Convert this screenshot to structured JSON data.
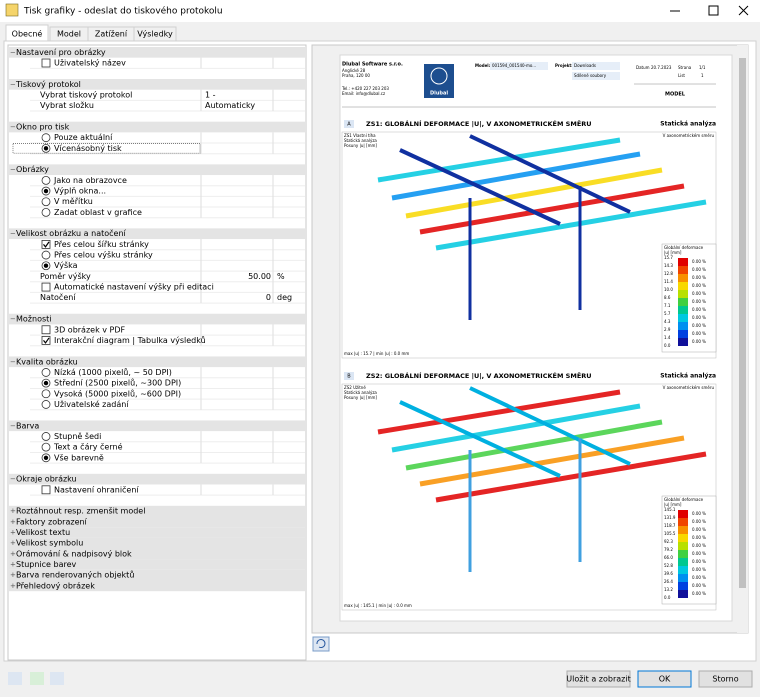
{
  "window": {
    "title": "Tisk grafiky - odeslat do tiskového protokolu"
  },
  "tabs": [
    "Obecné",
    "Model",
    "Zatížení",
    "Výsledky"
  ],
  "selected_tab": 0,
  "sections": [
    {
      "title": "Nastavení pro obrázky",
      "items": [
        {
          "label": "Uživatelský název",
          "control": "checkbox",
          "checked": false
        }
      ]
    },
    {
      "title": "Tiskový protokol",
      "items": [
        {
          "label": "Vybrat tiskový protokol",
          "value": "1 -"
        },
        {
          "label": "Vybrat složku",
          "value": "Automaticky"
        }
      ]
    },
    {
      "title": "Okno pro tisk",
      "items": [
        {
          "label": "Pouze aktuální",
          "control": "radio",
          "checked": false
        },
        {
          "label": "Vícenásobný tisk",
          "control": "radio",
          "checked": true,
          "focused": true
        }
      ]
    },
    {
      "title": "Obrázky",
      "items": [
        {
          "label": "Jako na obrazovce",
          "control": "radio",
          "checked": false
        },
        {
          "label": "Výplň okna...",
          "control": "radio",
          "checked": true
        },
        {
          "label": "V měřítku",
          "control": "radio",
          "checked": false
        },
        {
          "label": "Zadat oblast v grafice",
          "control": "radio",
          "checked": false
        }
      ]
    },
    {
      "title": "Velikost obrázku a natočení",
      "items": [
        {
          "label": "Přes celou šířku stránky",
          "control": "checkbox",
          "checked": true
        },
        {
          "label": "Přes celou výšku stránky",
          "control": "radio",
          "checked": false
        },
        {
          "label": "Výška",
          "control": "radio",
          "checked": true
        },
        {
          "label": "Poměr výšky",
          "value": "50.00",
          "unit": "%"
        },
        {
          "label": "Automatické nastavení výšky při editaci",
          "control": "checkbox",
          "checked": false
        },
        {
          "label": "Natočení",
          "value": "0",
          "unit": "deg"
        }
      ]
    },
    {
      "title": "Možnosti",
      "items": [
        {
          "label": "3D obrázek v PDF",
          "control": "checkbox",
          "checked": false
        },
        {
          "label": "Interakční diagram | Tabulka výsledků",
          "control": "checkbox",
          "checked": true
        }
      ]
    },
    {
      "title": "Kvalita obrázku",
      "items": [
        {
          "label": "Nízká (1000 pixelů, ~ 50 DPI)",
          "control": "radio",
          "checked": false
        },
        {
          "label": "Střední (2500 pixelů, ~300 DPI)",
          "control": "radio",
          "checked": true
        },
        {
          "label": "Vysoká (5000 pixelů, ~600 DPI)",
          "control": "radio",
          "checked": false
        },
        {
          "label": "Uživatelské zadání",
          "control": "radio",
          "checked": false
        }
      ]
    },
    {
      "title": "Barva",
      "items": [
        {
          "label": "Stupně šedi",
          "control": "radio",
          "checked": false
        },
        {
          "label": "Text a čáry černé",
          "control": "radio",
          "checked": false
        },
        {
          "label": "Vše barevně",
          "control": "radio",
          "checked": true
        }
      ]
    },
    {
      "title": "Okraje obrázku",
      "items": [
        {
          "label": "Nastavení ohraničení",
          "control": "checkbox",
          "checked": false
        }
      ]
    }
  ],
  "collapsed_sections": [
    "Roztáhnout resp. zmenšit model",
    "Faktory zobrazení",
    "Velikost textu",
    "Velikost symbolu",
    "Orámování & nadpisový blok",
    "Stupnice barev",
    "Barva renderovaných objektů",
    "Přehledový obrázek"
  ],
  "preview": {
    "header": {
      "company": "Dlubal Software s.r.o.",
      "address": [
        "Anglické 28",
        "Praha, 120 00"
      ],
      "contact": [
        "Tel.: +420 227 203 203",
        "Email: info@dlubal.cz"
      ],
      "logo": "Dlubal",
      "model_label": "Model:",
      "model": "001594_001540-mo...",
      "project_label": "Projekt:",
      "project": "Downloads",
      "project_sub": "Sdílené soubory",
      "date_label": "Datum",
      "date": "20.7.2023",
      "page_label": "Strana",
      "page": "1/1",
      "sheet_label": "List",
      "sheet": "1",
      "section": "MODEL"
    },
    "legend_colors": [
      "#e00000",
      "#f04400",
      "#f89000",
      "#f8d800",
      "#b8e000",
      "#40d040",
      "#00c890",
      "#00c8e0",
      "#0090f0",
      "#0040e0",
      "#10109a"
    ],
    "figures": [
      {
        "marker": "A",
        "title": "ZS1: GLOBÁLNÍ DEFORMACE |U|, V AXONOMETRICKÉM SMĚRU",
        "analysis": "Statická analýza",
        "info": [
          "ZS1 Vlastní tíha",
          "Statická analýza",
          "Posuny |u| [mm]"
        ],
        "view": "V axonometrickém směru",
        "legend_title": [
          "Globální deformace",
          "|u| [mm]"
        ],
        "legend_values": [
          "15.7",
          "14.3",
          "12.8",
          "11.4",
          "10.0",
          "8.6",
          "7.1",
          "5.7",
          "4.3",
          "2.9",
          "1.4",
          "0.0"
        ],
        "legend_percent": [
          "0.00 %",
          "0.00 %",
          "0.00 %",
          "0.00 %",
          "0.00 %",
          "0.00 %",
          "0.00 %",
          "0.00 %",
          "0.00 %",
          "0.00 %",
          "0.00 %"
        ],
        "footer": "max |u| : 15.7 | min |u| : 0.0 mm"
      },
      {
        "marker": "B",
        "title": "ZS2: GLOBÁLNÍ DEFORMACE |U|, V AXONOMETRICKÉM SMĚRU",
        "analysis": "Statická analýza",
        "info": [
          "ZS2 Užitné",
          "Statická analýza",
          "Posuny |u| [mm]"
        ],
        "view": "V axonometrickém směru",
        "legend_title": [
          "Globální deformace",
          "|u| [mm]"
        ],
        "legend_values": [
          "145.1",
          "131.9",
          "118.7",
          "105.5",
          "92.3",
          "79.2",
          "66.0",
          "52.8",
          "39.6",
          "26.4",
          "13.2",
          "0.0"
        ],
        "legend_percent": [
          "0.00 %",
          "0.00 %",
          "0.00 %",
          "0.00 %",
          "0.00 %",
          "0.00 %",
          "0.00 %",
          "0.00 %",
          "0.00 %",
          "0.00 %",
          "0.00 %"
        ],
        "footer": "max |u| : 145.1 | min |u| : 0.0 mm"
      }
    ]
  },
  "buttons": [
    "Uložit a zobrazit",
    "OK",
    "Storno"
  ]
}
